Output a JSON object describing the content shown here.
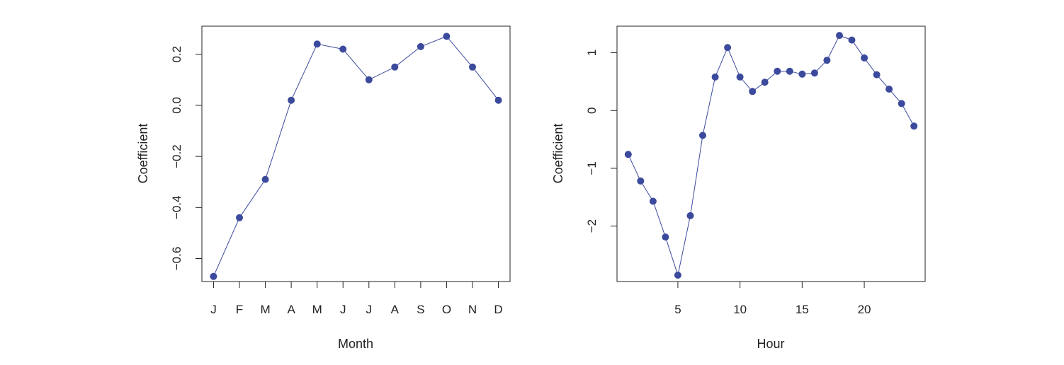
{
  "chart_data": [
    {
      "type": "line",
      "title": "",
      "xlabel": "Month",
      "ylabel": "Coefficient",
      "categories": [
        "J",
        "F",
        "M",
        "A",
        "M",
        "J",
        "J",
        "A",
        "S",
        "O",
        "N",
        "D"
      ],
      "series": [
        {
          "values": [
            -0.67,
            -0.44,
            -0.29,
            0.02,
            0.24,
            0.22,
            0.1,
            0.15,
            0.23,
            0.27,
            0.15,
            0.02
          ]
        }
      ],
      "yticks": [
        -0.6,
        -0.4,
        -0.2,
        0.0,
        0.2
      ],
      "ytick_labels": [
        "−0.6",
        "−0.4",
        "−0.2",
        "0.0",
        "0.2"
      ],
      "ylim": [
        -0.69,
        0.31
      ],
      "grid": false,
      "markers": true,
      "color": "#3b4a9c"
    },
    {
      "type": "line",
      "title": "",
      "xlabel": "Hour",
      "ylabel": "Coefficient",
      "x": [
        1,
        2,
        3,
        4,
        5,
        6,
        7,
        8,
        9,
        10,
        11,
        12,
        13,
        14,
        15,
        16,
        17,
        18,
        19,
        20,
        21,
        22,
        23,
        24
      ],
      "series": [
        {
          "values": [
            -0.76,
            -1.22,
            -1.57,
            -2.19,
            -2.85,
            -1.82,
            -0.43,
            0.58,
            1.09,
            0.58,
            0.33,
            0.49,
            0.68,
            0.68,
            0.63,
            0.65,
            0.87,
            1.3,
            1.22,
            0.91,
            0.62,
            0.37,
            0.12,
            -0.27
          ]
        }
      ],
      "xticks": [
        5,
        10,
        15,
        20
      ],
      "xtick_labels": [
        "5",
        "10",
        "15",
        "20"
      ],
      "yticks": [
        -2,
        -1,
        0,
        1
      ],
      "ytick_labels": [
        "−2",
        "−1",
        "0",
        "1"
      ],
      "xlim": [
        0.1,
        24.9
      ],
      "ylim": [
        -2.96,
        1.46
      ],
      "grid": false,
      "markers": true,
      "color": "#3b4a9c"
    }
  ]
}
